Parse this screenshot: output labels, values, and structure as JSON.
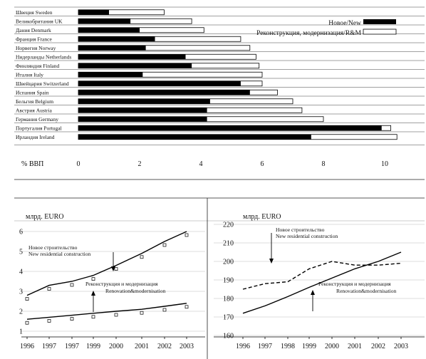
{
  "chart_data": [
    {
      "type": "bar",
      "orientation": "horizontal",
      "stacked": "overlay",
      "categories": [
        "Швеция Sweden",
        "Великобритания UK",
        "Дания Denmark",
        "Франция France",
        "Норвегия Norway",
        "Нидерланды Netherlands",
        "Финляндия Finland",
        "Италия Italy",
        "Швейцария Switzerland",
        "Испания Spain",
        "Бельгия Belgium",
        "Австрия Austria",
        "Германия Germany",
        "Португалия Portugal",
        "Ирландия Ireland"
      ],
      "series": [
        {
          "name": "Новое/New",
          "color": "#000000",
          "values": [
            1.0,
            1.7,
            2.0,
            2.5,
            2.2,
            3.5,
            3.7,
            2.1,
            5.3,
            5.6,
            4.3,
            4.2,
            4.2,
            9.9,
            7.6
          ]
        },
        {
          "name": "Реконструкция, модернизация/R&M",
          "color": "#ffffff",
          "values": [
            2.8,
            3.7,
            4.1,
            5.3,
            5.6,
            5.8,
            5.9,
            6.0,
            6.0,
            6.5,
            7.0,
            7.3,
            8.0,
            10.2,
            10.4
          ]
        }
      ],
      "xlabel": "% ВВП",
      "xlim": [
        0,
        10.5
      ],
      "xticks": [
        0,
        2,
        4,
        6,
        8,
        10
      ],
      "legend": "top-right",
      "grid": "horizontal-rules"
    },
    {
      "type": "line",
      "ylabel": "млрд. EURO",
      "x": [
        1996,
        1997,
        1997,
        1999,
        2000,
        2001,
        2002,
        2003
      ],
      "ylim": [
        0.5,
        6.5
      ],
      "yticks": [
        1,
        2,
        3,
        4,
        5,
        6
      ],
      "series": [
        {
          "values": [
            2.8,
            3.3,
            3.5,
            3.8,
            4.3,
            4.9,
            5.5,
            6.0
          ],
          "style": "solid"
        },
        {
          "values": [
            1.6,
            1.7,
            1.8,
            1.9,
            2.0,
            2.1,
            2.25,
            2.4
          ],
          "style": "solid"
        }
      ],
      "annotations": [
        {
          "text": "Новое строительство",
          "target": 0
        },
        {
          "text": "New residential construction",
          "target": 0
        },
        {
          "text": "Реконструкция и модернизация",
          "target": 1
        },
        {
          "text": "Renovation&modernisation",
          "target": 1
        }
      ]
    },
    {
      "type": "line",
      "ylabel": "млрд. EURO",
      "x": [
        1996,
        1997,
        1998,
        1999,
        2000,
        2001,
        2002,
        2003
      ],
      "ylim": [
        155,
        225
      ],
      "yticks": [
        160,
        170,
        180,
        190,
        200,
        210,
        220
      ],
      "series": [
        {
          "values": [
            185,
            188,
            189,
            196,
            200,
            198,
            198,
            199
          ],
          "style": "dashed"
        },
        {
          "values": [
            172,
            176,
            181,
            186,
            191,
            196,
            200,
            205
          ],
          "style": "solid"
        }
      ],
      "annotations": [
        {
          "text": "Новое строительство",
          "target": 0
        },
        {
          "text": "New residential construction",
          "target": 0
        },
        {
          "text": "Реконструкция и модернизация",
          "target": 1
        },
        {
          "text": "Renovation&modernisation",
          "target": 1
        }
      ]
    }
  ]
}
